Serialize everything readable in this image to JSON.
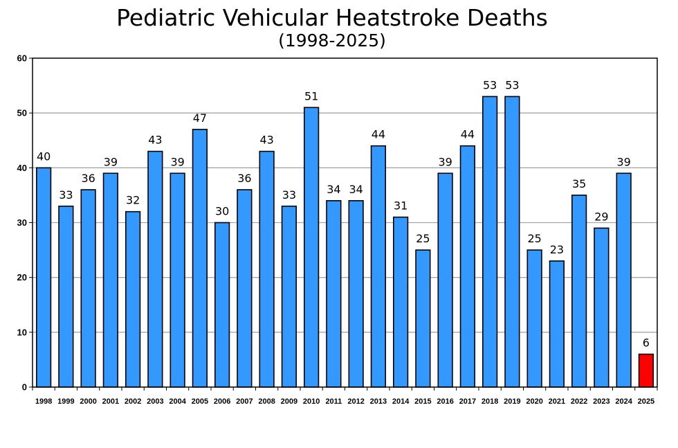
{
  "chart_data": {
    "type": "bar",
    "title": "Pediatric Vehicular Heatstroke Deaths",
    "subtitle": "(1998-2025)",
    "xlabel": "",
    "ylabel": "",
    "ylim": [
      0,
      60
    ],
    "yticks": [
      0,
      10,
      20,
      30,
      40,
      50,
      60
    ],
    "grid": true,
    "categories": [
      "1998",
      "1999",
      "2000",
      "2001",
      "2002",
      "2003",
      "2004",
      "2005",
      "2006",
      "2007",
      "2008",
      "2009",
      "2010",
      "2011",
      "2012",
      "2013",
      "2014",
      "2015",
      "2016",
      "2017",
      "2018",
      "2019",
      "2020",
      "2021",
      "2022",
      "2023",
      "2024",
      "2025"
    ],
    "values": [
      40,
      33,
      36,
      39,
      32,
      43,
      39,
      47,
      30,
      36,
      43,
      33,
      51,
      34,
      34,
      44,
      31,
      25,
      39,
      44,
      53,
      53,
      25,
      23,
      35,
      29,
      39,
      6
    ],
    "colors": {
      "bar": "#3399ff",
      "highlight": "#ff0000",
      "highlight_category": "2025",
      "grid": "#a6a6a6"
    }
  }
}
